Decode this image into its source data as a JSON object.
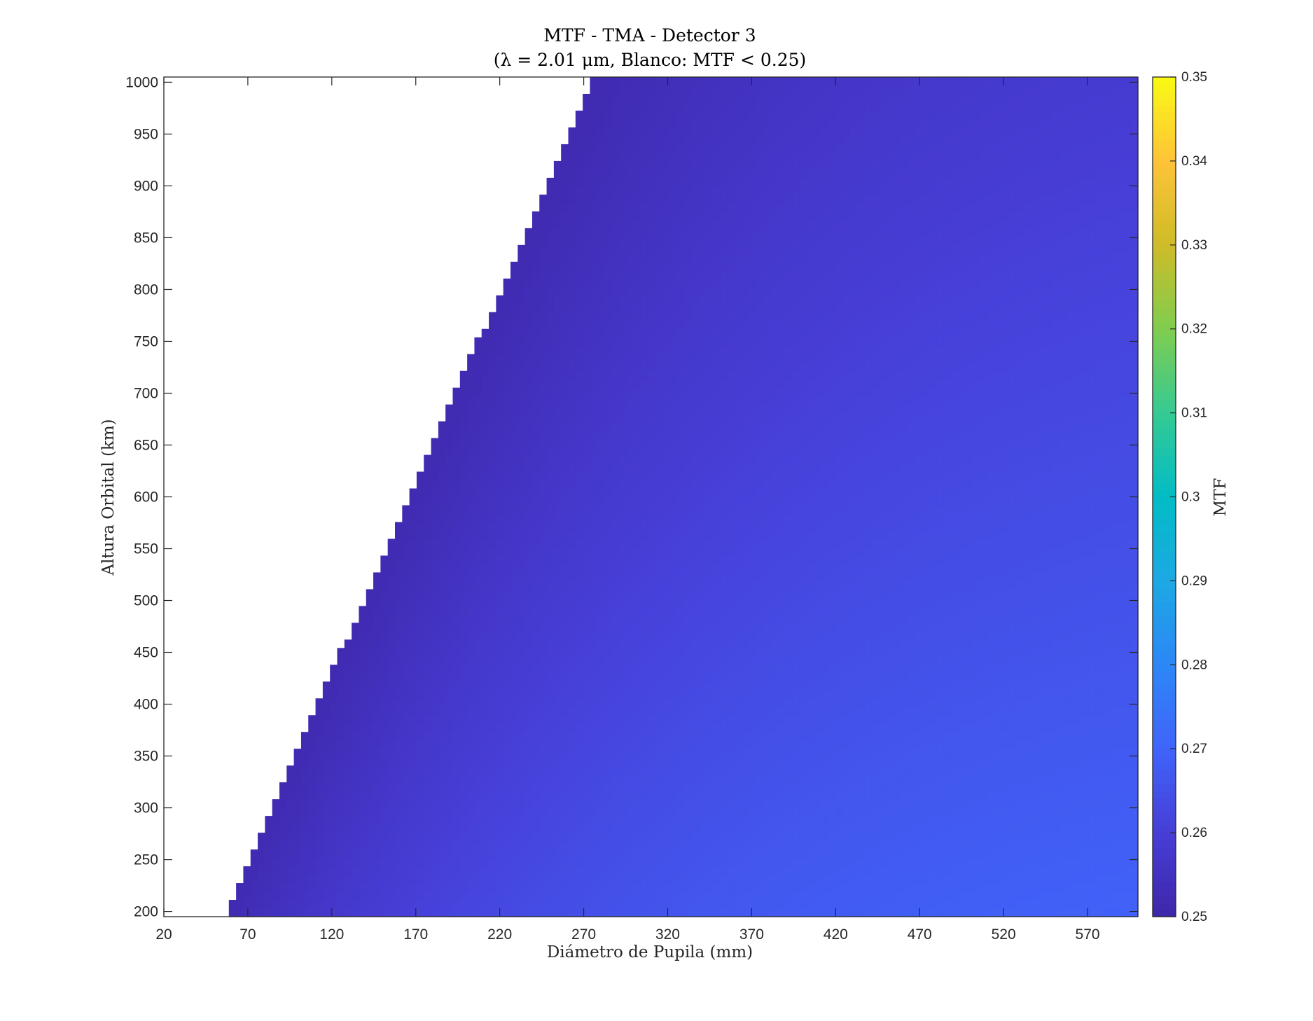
{
  "chart_data": {
    "type": "heatmap",
    "title": "MTF - TMA - Detector 3",
    "subtitle": "(λ = 2.01 μm, Blanco: MTF < 0.25)",
    "xlabel": "Diámetro de Pupila (mm)",
    "ylabel": "Altura Orbital (km)",
    "colorbar_label": "MTF",
    "xlim": [
      20,
      600
    ],
    "ylim": [
      195,
      1005
    ],
    "clim": [
      0.25,
      0.35
    ],
    "x_ticks": [
      "20",
      "70",
      "120",
      "170",
      "220",
      "270",
      "320",
      "370",
      "420",
      "470",
      "520",
      "570"
    ],
    "y_ticks": [
      "200",
      "250",
      "300",
      "350",
      "400",
      "450",
      "500",
      "550",
      "600",
      "650",
      "700",
      "750",
      "800",
      "850",
      "900",
      "950",
      "1000"
    ],
    "colorbar_ticks": [
      "0.25",
      "0.26",
      "0.27",
      "0.28",
      "0.29",
      "0.3",
      "0.31",
      "0.32",
      "0.33",
      "0.34",
      "0.35"
    ],
    "colormap": "parula",
    "masked_color": "#ffffff",
    "threshold": 0.25,
    "threshold_boundary": [
      {
        "altitude": 200,
        "diameter": 55
      },
      {
        "altitude": 1000,
        "diameter": 273
      }
    ],
    "sample_values": [
      {
        "diameter": 60,
        "altitude": 200,
        "mtf": 0.252
      },
      {
        "diameter": 300,
        "altitude": 1000,
        "mtf": 0.252
      },
      {
        "diameter": 590,
        "altitude": 1000,
        "mtf": 0.265
      },
      {
        "diameter": 590,
        "altitude": 200,
        "mtf": 0.275
      },
      {
        "diameter": 300,
        "altitude": 200,
        "mtf": 0.272
      },
      {
        "diameter": 590,
        "altitude": 600,
        "mtf": 0.27
      }
    ]
  }
}
